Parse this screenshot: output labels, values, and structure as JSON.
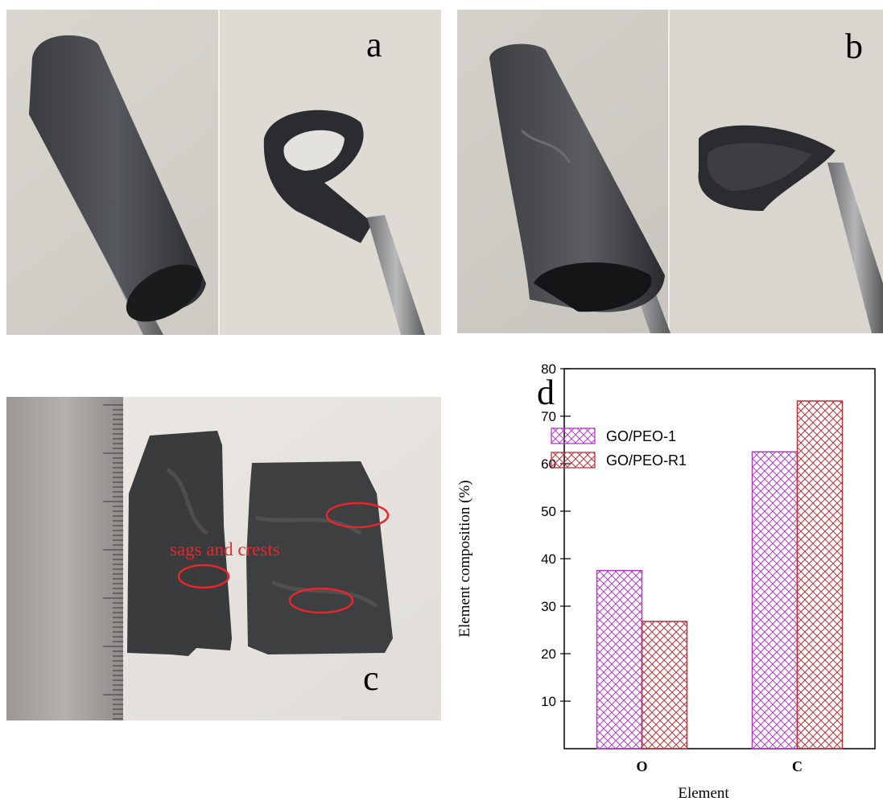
{
  "panels": {
    "a": {
      "label": "a"
    },
    "b": {
      "label": "b"
    },
    "c": {
      "label": "c",
      "annotation": "sags and crests"
    },
    "d": {
      "label": "d"
    }
  },
  "colors": {
    "annotation_red": "#e8262a",
    "series_go_peo_1": "#b23ac8",
    "series_go_peo_r1": "#b8333a"
  },
  "chart_data": {
    "type": "bar",
    "categories": [
      "O",
      "C"
    ],
    "series": [
      {
        "name": "GO/PEO-1",
        "values": [
          37.5,
          62.5
        ],
        "color": "#b23ac8",
        "pattern": "crosshatch"
      },
      {
        "name": "GO/PEO-R1",
        "values": [
          26.8,
          73.2
        ],
        "color": "#b8333a",
        "pattern": "crosshatch"
      }
    ],
    "xlabel": "Element",
    "ylabel": "Element composition (%)",
    "ylim": [
      0,
      80
    ],
    "yticks": [
      10,
      20,
      30,
      40,
      50,
      60,
      70,
      80
    ],
    "legend": "top-left",
    "grid": false
  }
}
